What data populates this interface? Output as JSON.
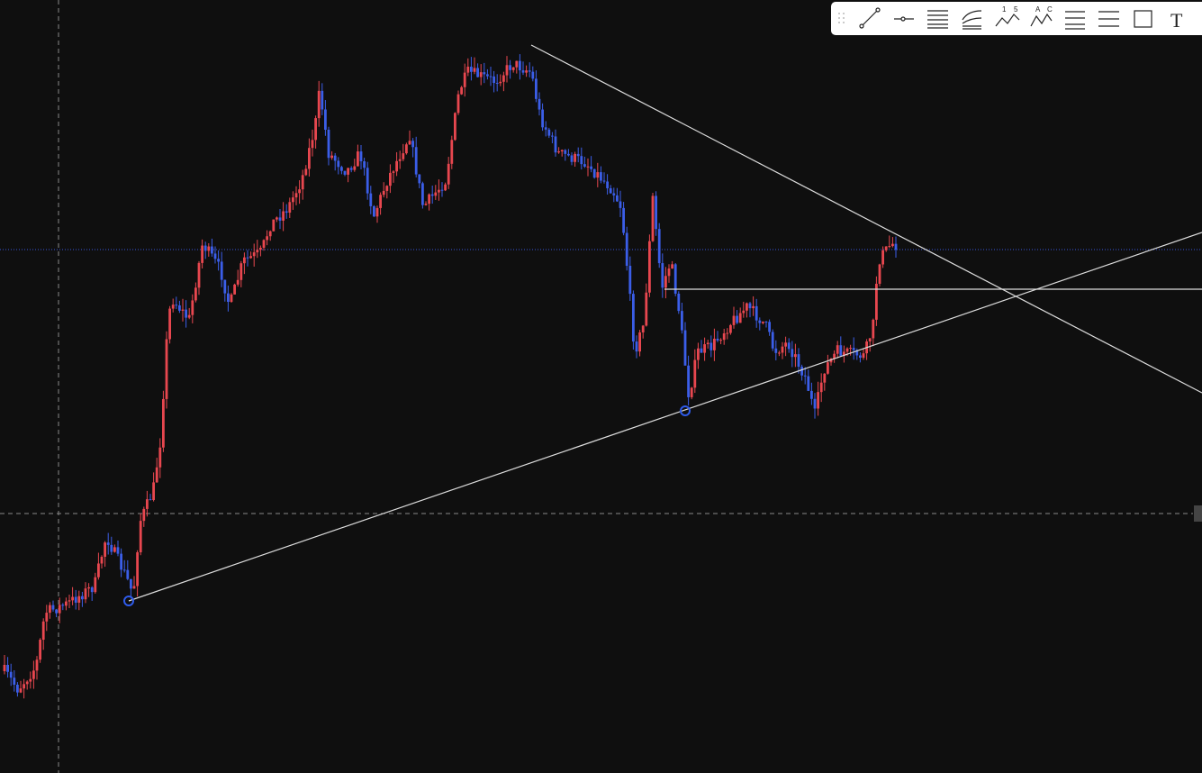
{
  "toolbar": {
    "labels": [
      "1",
      "5",
      "A",
      "C",
      "T"
    ]
  }
}
